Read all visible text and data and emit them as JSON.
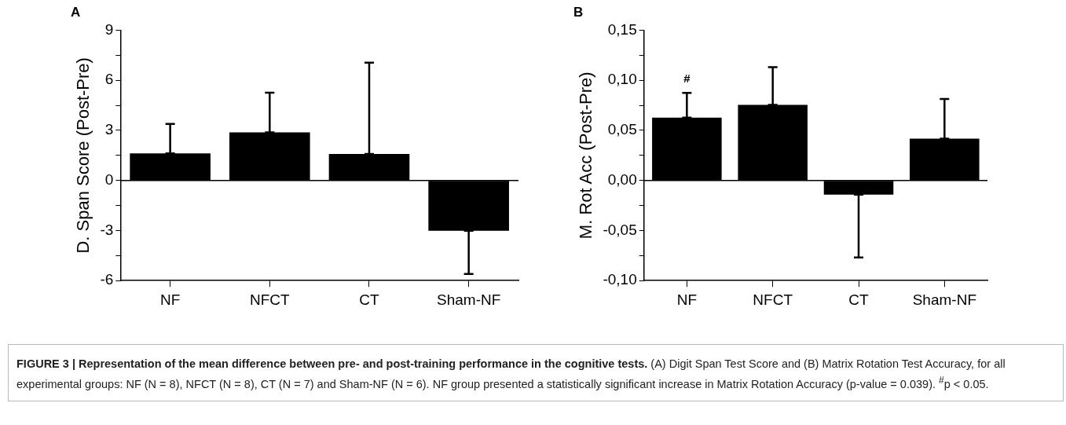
{
  "chart_data": [
    {
      "type": "bar",
      "title": "A",
      "ylabel": "D. Span Score (Post-Pre)",
      "categories": [
        "NF",
        "NFCT",
        "CT",
        "Sham-NF"
      ],
      "values": [
        1.62,
        2.88,
        1.58,
        -3.02
      ],
      "errors": [
        [
          1.62,
          3.39
        ],
        [
          2.88,
          5.26
        ],
        [
          1.58,
          7.05
        ],
        [
          -5.6,
          -3.02
        ]
      ],
      "color": "#000000",
      "ylim": [
        -6,
        9
      ],
      "yticks": [
        -6,
        {
          "value": -4.5,
          "label": null
        },
        -3,
        {
          "value": -1.5,
          "label": null
        },
        0,
        {
          "value": 1.5,
          "label": null
        },
        3,
        {
          "value": 4.5,
          "label": null
        },
        6,
        {
          "value": 7.5,
          "label": null
        },
        9
      ],
      "ref_lines": [
        {
          "axis": "y",
          "value": 0
        }
      ],
      "grid": false,
      "legend": false,
      "annotations": [
        "FIGURE 3 | Representation of the mean difference between pre- and post-training performance in the cognitive tests.",
        "(A) Digit Span Test Score and (B) Matrix Rotation Test Accuracy, for all experimental groups: NF (N = 8), NFCT (N = 8), CT (N = 7) and Sham-NF (N = 6). NF group presented a statistically significant increase in Matrix Rotation Accuracy (p-value = 0.039). $^{#}$p < 0.05."
      ]
    },
    {
      "type": "bar",
      "title": "B",
      "ylabel": "M. Rot Acc (Post-Pre)",
      "categories": [
        "NF",
        "NFCT",
        "CT",
        "Sham-NF"
      ],
      "values": [
        0.0627,
        0.0754,
        -0.0142,
        0.0417
      ],
      "errors": [
        [
          0.0627,
          0.0873
        ],
        [
          0.0754,
          0.113
        ],
        [
          -0.0769,
          -0.0142
        ],
        [
          0.0417,
          0.0814
        ]
      ],
      "color": "#000000",
      "ylim": [
        -0.1,
        0.15
      ],
      "yticks": [
        {
          "value": -0.1,
          "label": "-0,10"
        },
        {
          "value": -0.075,
          "label": null
        },
        {
          "value": -0.05,
          "label": "-0,05"
        },
        {
          "value": -0.025,
          "label": null
        },
        {
          "value": 0,
          "label": "0,00"
        },
        {
          "value": 0.025,
          "label": null
        },
        {
          "value": 0.05,
          "label": "0,05"
        },
        {
          "value": 0.075,
          "label": null
        },
        {
          "value": 0.1,
          "label": "0,10"
        },
        {
          "value": 0.125,
          "label": null
        },
        {
          "value": 0.15,
          "label": "0,15"
        }
      ],
      "ref_lines": [
        {
          "axis": "y",
          "value": 0
        }
      ],
      "grid": false,
      "legend": false,
      "annotations": [
        {
          "text": "#",
          "x": "NF",
          "y": 0.0873
        }
      ]
    }
  ]
}
